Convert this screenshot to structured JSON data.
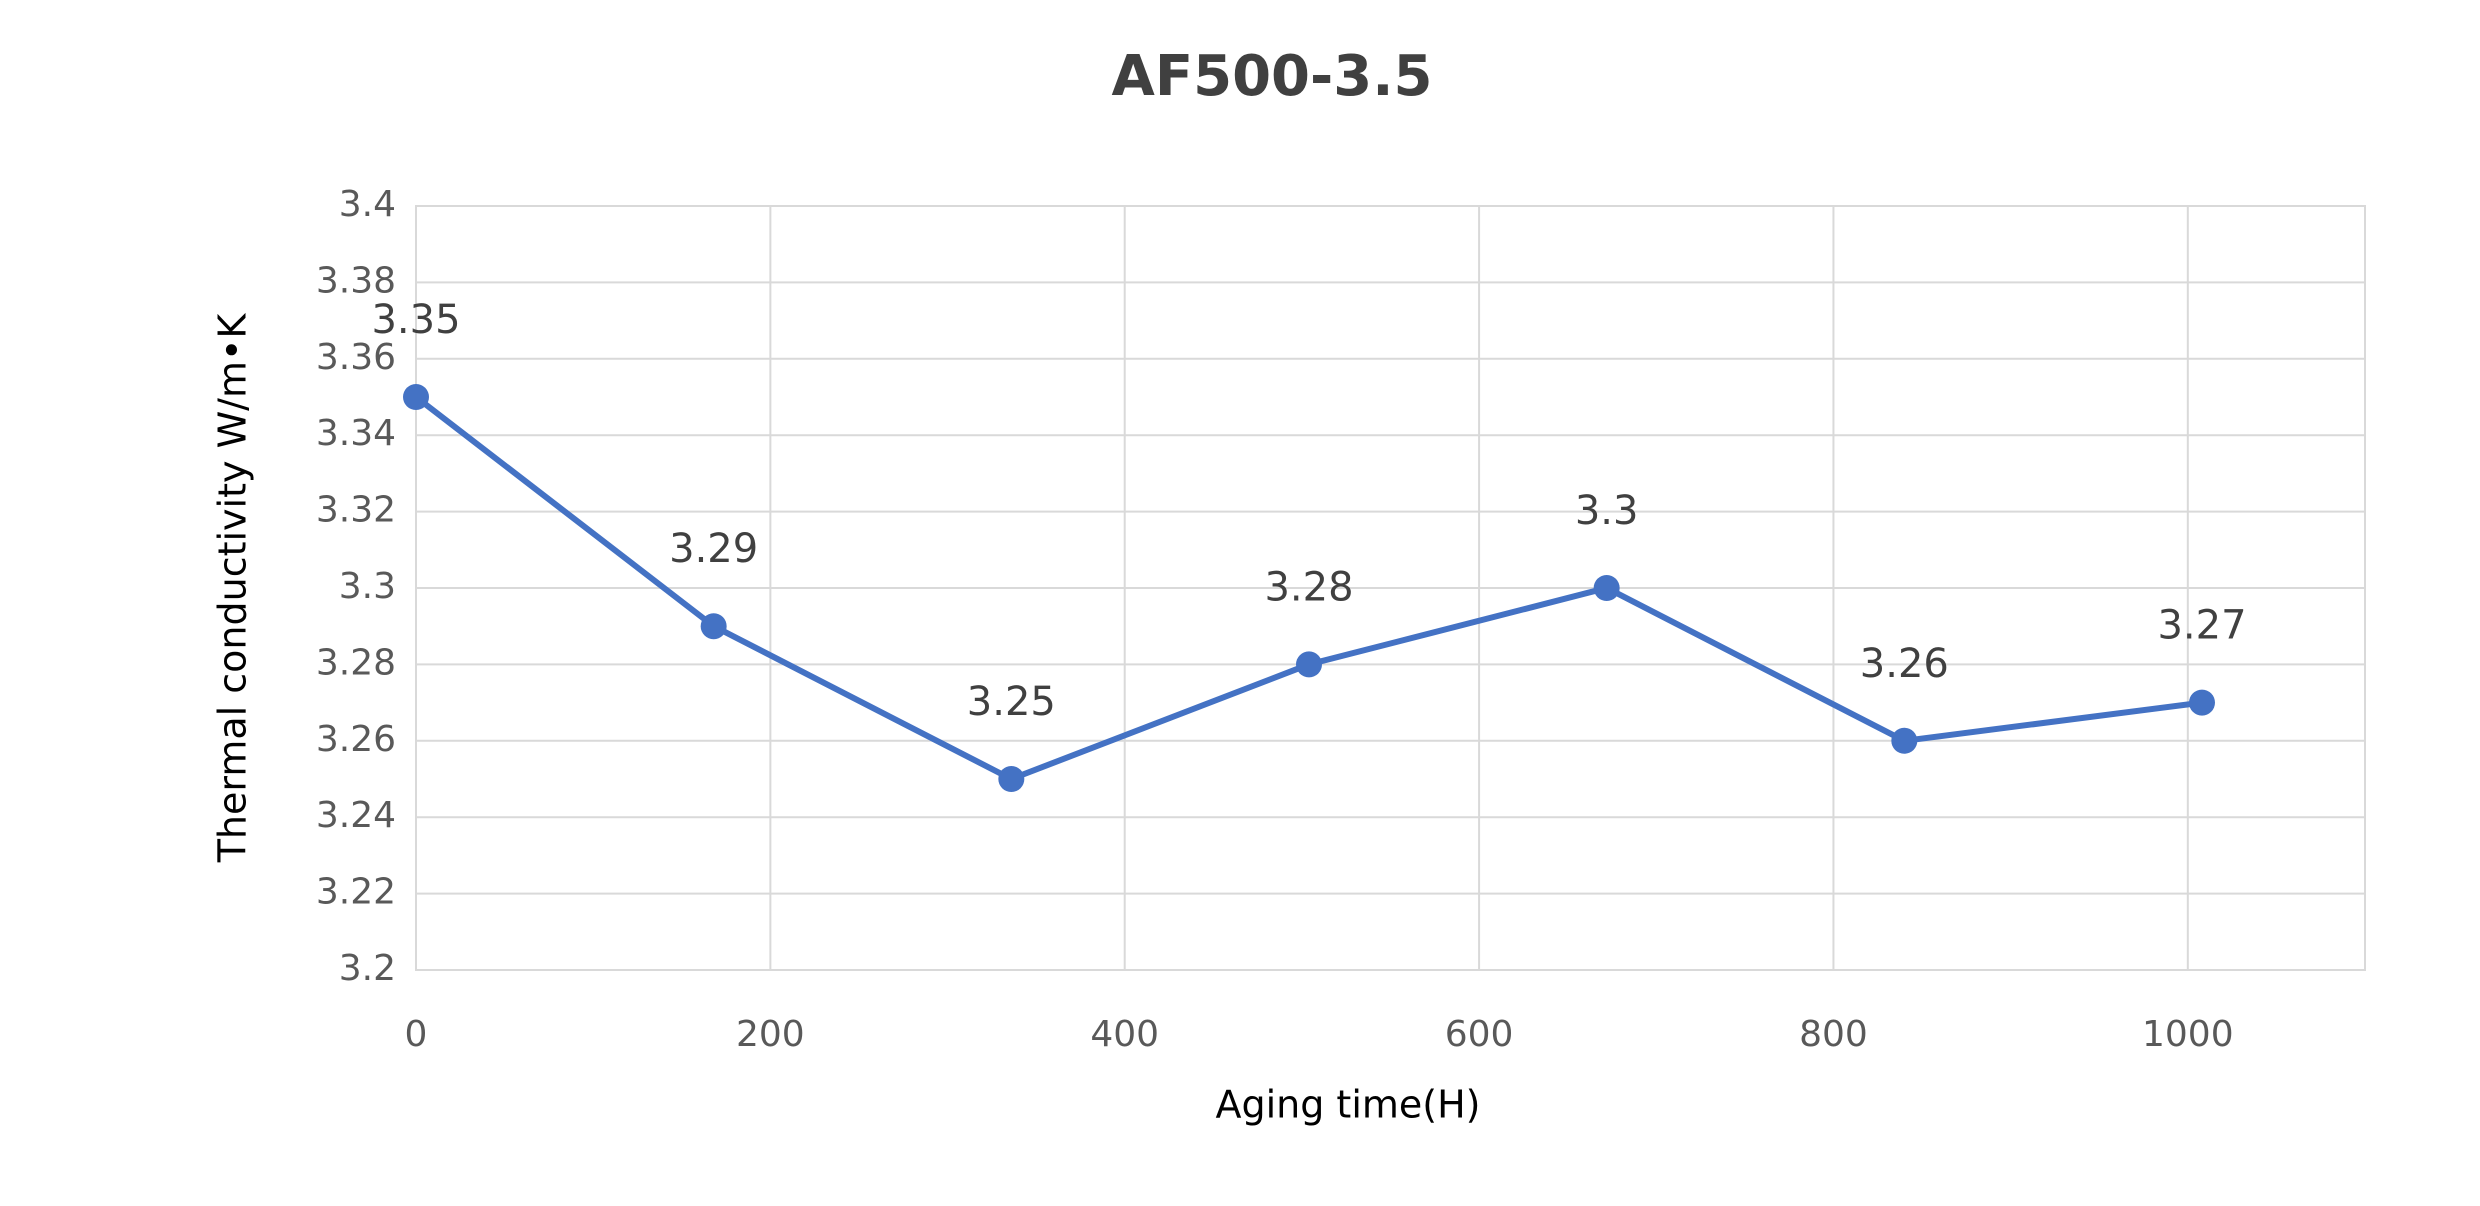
{
  "chart_data": {
    "type": "line",
    "title": "AF500-3.5",
    "x_label": "Aging time(H)",
    "y_label": "Thermal conductivity W/m•K",
    "x": [
      0,
      168,
      336,
      504,
      672,
      840,
      1008
    ],
    "series": [
      {
        "name": "AF500-3.5",
        "color": "#4472c4",
        "values": [
          3.35,
          3.29,
          3.25,
          3.28,
          3.3,
          3.26,
          3.27
        ]
      }
    ],
    "xlim": [
      0,
      1100
    ],
    "xticks": [
      0,
      200,
      400,
      600,
      800,
      1000
    ],
    "ylim": [
      3.2,
      3.4
    ],
    "yticks": [
      3.2,
      3.22,
      3.24,
      3.26,
      3.28,
      3.3,
      3.32,
      3.34,
      3.36,
      3.38,
      3.4
    ],
    "grid": true
  }
}
